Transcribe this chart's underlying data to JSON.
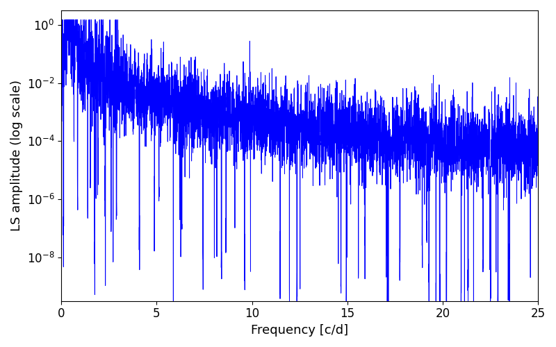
{
  "xlabel": "Frequency [c/d]",
  "ylabel": "LS amplitude (log scale)",
  "line_color": "#0000ff",
  "xlim": [
    0,
    25
  ],
  "ylim_log_min": -9.5,
  "ylim_log_max": 0.5,
  "freq_max": 25.0,
  "n_points": 5000,
  "seed": 77,
  "background_color": "#ffffff",
  "figsize": [
    8.0,
    5.0
  ],
  "dpi": 100,
  "tick_labelsize": 12,
  "axis_labelsize": 13,
  "linewidth": 0.7
}
